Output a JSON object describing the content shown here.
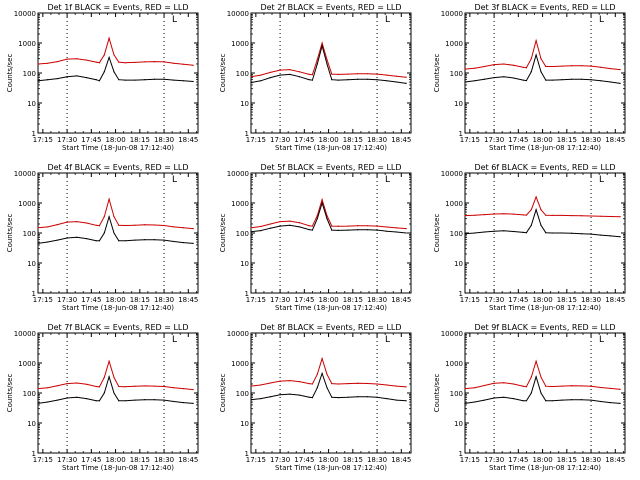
{
  "figure": {
    "panel_title_template": "Det {det} BLACK = Events, RED = LLD",
    "xlabel": "Start Time (18-Jun-08 17:12:40)",
    "ylabel": "Counts/sec",
    "ytick_labels": [
      "1",
      "10",
      "100",
      "1000",
      "10000"
    ],
    "xtick_labels": [
      "17:15",
      "17:30",
      "17:45",
      "18:00",
      "18:15",
      "18:30",
      "18:45"
    ],
    "colors": {
      "events": "#000000",
      "lld": "#cc0000",
      "axes": "#000000",
      "background": "#ffffff"
    },
    "corner_marker": "L"
  },
  "chart_data": [
    {
      "type": "line",
      "title": "Det 1f BLACK = Events, RED = LLD",
      "xlabel": "Start Time (18-Jun-08 17:12:40)",
      "ylabel": "Counts/sec",
      "x_range": [
        "17:12",
        "18:51"
      ],
      "ylim": [
        1,
        10000
      ],
      "yscale": "log",
      "vlines": [
        "17:30",
        "18:30"
      ],
      "grid": false,
      "x": [
        "17:12",
        "17:18",
        "17:24",
        "17:30",
        "17:36",
        "17:42",
        "17:48",
        "17:50",
        "17:53",
        "17:56",
        "17:59",
        "18:02",
        "18:06",
        "18:12",
        "18:18",
        "18:24",
        "18:30",
        "18:36",
        "18:42",
        "18:48"
      ],
      "series": [
        {
          "name": "BLACK = Events",
          "color": "#000000",
          "values": [
            55,
            60,
            65,
            75,
            80,
            70,
            60,
            55,
            110,
            330,
            110,
            60,
            58,
            58,
            60,
            62,
            62,
            58,
            55,
            52
          ]
        },
        {
          "name": "RED = LLD",
          "color": "#cc0000",
          "values": [
            200,
            210,
            240,
            290,
            300,
            270,
            230,
            220,
            400,
            1450,
            400,
            230,
            220,
            225,
            235,
            240,
            235,
            210,
            195,
            180
          ]
        }
      ]
    },
    {
      "type": "line",
      "title": "Det 2f BLACK = Events, RED = LLD",
      "xlabel": "Start Time (18-Jun-08 17:12:40)",
      "ylabel": "Counts/sec",
      "x_range": [
        "17:12",
        "18:51"
      ],
      "ylim": [
        1,
        10000
      ],
      "yscale": "log",
      "vlines": [
        "17:30",
        "18:30"
      ],
      "grid": false,
      "x": [
        "17:12",
        "17:18",
        "17:24",
        "17:30",
        "17:36",
        "17:42",
        "17:48",
        "17:50",
        "17:53",
        "17:56",
        "17:59",
        "18:02",
        "18:06",
        "18:12",
        "18:18",
        "18:24",
        "18:30",
        "18:36",
        "18:42",
        "18:48"
      ],
      "series": [
        {
          "name": "BLACK = Events",
          "color": "#000000",
          "values": [
            48,
            55,
            70,
            85,
            90,
            75,
            60,
            58,
            200,
            800,
            200,
            60,
            58,
            60,
            62,
            62,
            60,
            55,
            50,
            45
          ]
        },
        {
          "name": "RED = LLD",
          "color": "#cc0000",
          "values": [
            75,
            85,
            105,
            125,
            130,
            110,
            90,
            88,
            280,
            1000,
            280,
            92,
            90,
            92,
            95,
            95,
            92,
            85,
            78,
            72
          ]
        }
      ]
    },
    {
      "type": "line",
      "title": "Det 3f BLACK = Events, RED = LLD",
      "xlabel": "Start Time (18-Jun-08 17:12:40)",
      "ylabel": "Counts/sec",
      "x_range": [
        "17:12",
        "18:51"
      ],
      "ylim": [
        1,
        10000
      ],
      "yscale": "log",
      "vlines": [
        "17:30",
        "18:30"
      ],
      "grid": false,
      "x": [
        "17:12",
        "17:18",
        "17:24",
        "17:30",
        "17:36",
        "17:42",
        "17:48",
        "17:50",
        "17:53",
        "17:56",
        "17:59",
        "18:02",
        "18:06",
        "18:12",
        "18:18",
        "18:24",
        "18:30",
        "18:36",
        "18:42",
        "18:48"
      ],
      "series": [
        {
          "name": "BLACK = Events",
          "color": "#000000",
          "values": [
            50,
            55,
            62,
            70,
            75,
            68,
            58,
            56,
            110,
            400,
            110,
            58,
            58,
            60,
            62,
            62,
            60,
            55,
            50,
            45
          ]
        },
        {
          "name": "RED = LLD",
          "color": "#cc0000",
          "values": [
            135,
            145,
            165,
            190,
            200,
            180,
            155,
            150,
            300,
            1200,
            300,
            165,
            165,
            170,
            175,
            175,
            170,
            155,
            140,
            130
          ]
        }
      ]
    },
    {
      "type": "line",
      "title": "Det 4f BLACK = Events, RED = LLD",
      "xlabel": "Start Time (18-Jun-08 17:12:40)",
      "ylabel": "Counts/sec",
      "x_range": [
        "17:12",
        "18:51"
      ],
      "ylim": [
        1,
        10000
      ],
      "yscale": "log",
      "vlines": [
        "17:30",
        "18:30"
      ],
      "grid": false,
      "x": [
        "17:12",
        "17:18",
        "17:24",
        "17:30",
        "17:36",
        "17:42",
        "17:48",
        "17:50",
        "17:53",
        "17:56",
        "17:59",
        "18:02",
        "18:06",
        "18:12",
        "18:18",
        "18:24",
        "18:30",
        "18:36",
        "18:42",
        "18:48"
      ],
      "series": [
        {
          "name": "BLACK = Events",
          "color": "#000000",
          "values": [
            45,
            50,
            58,
            68,
            72,
            65,
            55,
            55,
            100,
            350,
            100,
            55,
            55,
            58,
            60,
            60,
            58,
            52,
            48,
            45
          ]
        },
        {
          "name": "RED = LLD",
          "color": "#cc0000",
          "values": [
            150,
            160,
            190,
            230,
            240,
            215,
            180,
            175,
            350,
            1350,
            350,
            180,
            178,
            182,
            188,
            185,
            178,
            160,
            150,
            140
          ]
        }
      ]
    },
    {
      "type": "line",
      "title": "Det 5f BLACK = Events, RED = LLD",
      "xlabel": "Start Time (18-Jun-08 17:12:40)",
      "ylabel": "Counts/sec",
      "x_range": [
        "17:12",
        "18:51"
      ],
      "ylim": [
        1,
        10000
      ],
      "yscale": "log",
      "vlines": [
        "17:30",
        "18:30"
      ],
      "grid": false,
      "x": [
        "17:12",
        "17:18",
        "17:24",
        "17:30",
        "17:36",
        "17:42",
        "17:48",
        "17:50",
        "17:53",
        "17:56",
        "17:59",
        "18:02",
        "18:06",
        "18:12",
        "18:18",
        "18:24",
        "18:30",
        "18:36",
        "18:42",
        "18:48"
      ],
      "series": [
        {
          "name": "BLACK = Events",
          "color": "#000000",
          "values": [
            110,
            120,
            145,
            170,
            180,
            160,
            130,
            125,
            300,
            1000,
            300,
            125,
            122,
            125,
            128,
            128,
            125,
            115,
            108,
            100
          ]
        },
        {
          "name": "RED = LLD",
          "color": "#cc0000",
          "values": [
            150,
            165,
            200,
            240,
            250,
            220,
            175,
            170,
            380,
            1300,
            380,
            170,
            168,
            170,
            175,
            175,
            170,
            158,
            148,
            140
          ]
        }
      ]
    },
    {
      "type": "line",
      "title": "Det 6f BLACK = Events, RED = LLD",
      "xlabel": "Start Time (18-Jun-08 17:12:40)",
      "ylabel": "Counts/sec",
      "x_range": [
        "17:12",
        "18:51"
      ],
      "ylim": [
        1,
        10000
      ],
      "yscale": "log",
      "vlines": [
        "17:30",
        "18:30"
      ],
      "grid": false,
      "x": [
        "17:12",
        "17:18",
        "17:24",
        "17:30",
        "17:36",
        "17:42",
        "17:48",
        "17:50",
        "17:53",
        "17:56",
        "17:59",
        "18:02",
        "18:06",
        "18:12",
        "18:18",
        "18:24",
        "18:30",
        "18:36",
        "18:42",
        "18:48"
      ],
      "series": [
        {
          "name": "BLACK = Events",
          "color": "#000000",
          "values": [
            95,
            100,
            108,
            115,
            118,
            112,
            105,
            102,
            180,
            600,
            180,
            102,
            100,
            100,
            98,
            95,
            92,
            85,
            80,
            75
          ]
        },
        {
          "name": "RED = LLD",
          "color": "#cc0000",
          "values": [
            380,
            390,
            410,
            430,
            440,
            425,
            400,
            395,
            600,
            1600,
            600,
            390,
            385,
            385,
            380,
            375,
            370,
            360,
            355,
            350
          ]
        }
      ]
    },
    {
      "type": "line",
      "title": "Det 7f BLACK = Events, RED = LLD",
      "xlabel": "Start Time (18-Jun-08 17:12:40)",
      "ylabel": "Counts/sec",
      "x_range": [
        "17:12",
        "18:51"
      ],
      "ylim": [
        1,
        10000
      ],
      "yscale": "log",
      "vlines": [
        "17:30",
        "18:30"
      ],
      "grid": false,
      "x": [
        "17:12",
        "17:18",
        "17:24",
        "17:30",
        "17:36",
        "17:42",
        "17:48",
        "17:50",
        "17:53",
        "17:56",
        "17:59",
        "18:02",
        "18:06",
        "18:12",
        "18:18",
        "18:24",
        "18:30",
        "18:36",
        "18:42",
        "18:48"
      ],
      "series": [
        {
          "name": "BLACK = Events",
          "color": "#000000",
          "values": [
            45,
            50,
            58,
            68,
            72,
            65,
            55,
            55,
            100,
            350,
            100,
            55,
            55,
            58,
            60,
            60,
            58,
            52,
            48,
            45
          ]
        },
        {
          "name": "RED = LLD",
          "color": "#cc0000",
          "values": [
            140,
            150,
            175,
            205,
            215,
            195,
            165,
            160,
            330,
            1150,
            330,
            165,
            162,
            168,
            172,
            170,
            165,
            150,
            140,
            130
          ]
        }
      ]
    },
    {
      "type": "line",
      "title": "Det 8f BLACK = Events, RED = LLD",
      "xlabel": "Start Time (18-Jun-08 17:12:40)",
      "ylabel": "Counts/sec",
      "x_range": [
        "17:12",
        "18:51"
      ],
      "ylim": [
        1,
        10000
      ],
      "yscale": "log",
      "vlines": [
        "17:30",
        "18:30"
      ],
      "grid": false,
      "x": [
        "17:12",
        "17:18",
        "17:24",
        "17:30",
        "17:36",
        "17:42",
        "17:48",
        "17:50",
        "17:53",
        "17:56",
        "17:59",
        "18:02",
        "18:06",
        "18:12",
        "18:18",
        "18:24",
        "18:30",
        "18:36",
        "18:42",
        "18:48"
      ],
      "series": [
        {
          "name": "BLACK = Events",
          "color": "#000000",
          "values": [
            60,
            65,
            75,
            88,
            92,
            85,
            72,
            70,
            150,
            450,
            150,
            72,
            70,
            72,
            75,
            75,
            72,
            65,
            58,
            55
          ]
        },
        {
          "name": "RED = LLD",
          "color": "#cc0000",
          "values": [
            170,
            185,
            215,
            250,
            260,
            240,
            205,
            200,
            420,
            1400,
            420,
            205,
            200,
            205,
            210,
            208,
            200,
            185,
            170,
            160
          ]
        }
      ]
    },
    {
      "type": "line",
      "title": "Det 9f BLACK = Events, RED = LLD",
      "xlabel": "Start Time (18-Jun-08 17:12:40)",
      "ylabel": "Counts/sec",
      "x_range": [
        "17:12",
        "18:51"
      ],
      "ylim": [
        1,
        10000
      ],
      "yscale": "log",
      "vlines": [
        "17:30",
        "18:30"
      ],
      "grid": false,
      "x": [
        "17:12",
        "17:18",
        "17:24",
        "17:30",
        "17:36",
        "17:42",
        "17:48",
        "17:50",
        "17:53",
        "17:56",
        "17:59",
        "18:02",
        "18:06",
        "18:12",
        "18:18",
        "18:24",
        "18:30",
        "18:36",
        "18:42",
        "18:48"
      ],
      "series": [
        {
          "name": "BLACK = Events",
          "color": "#000000",
          "values": [
            45,
            50,
            58,
            68,
            72,
            65,
            55,
            55,
            100,
            350,
            100,
            55,
            55,
            58,
            60,
            60,
            58,
            52,
            48,
            45
          ]
        },
        {
          "name": "RED = LLD",
          "color": "#cc0000",
          "values": [
            140,
            150,
            178,
            210,
            220,
            200,
            168,
            162,
            340,
            1150,
            340,
            168,
            165,
            170,
            175,
            172,
            168,
            152,
            142,
            132
          ]
        }
      ]
    }
  ]
}
